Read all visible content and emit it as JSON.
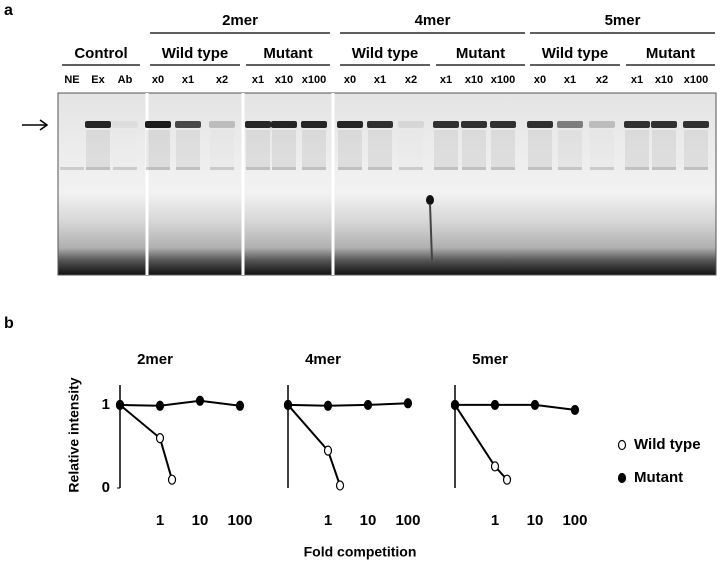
{
  "gel": {
    "panel_label": "a",
    "constructs": [
      "2mer",
      "4mer",
      "5mer"
    ],
    "groups": [
      "Control",
      "Wild type",
      "Mutant",
      "Wild type",
      "Mutant",
      "Wild type",
      "Mutant"
    ],
    "lanes": [
      "NE",
      "Ex",
      "Ab",
      "x0",
      "x1",
      "x2",
      "x1",
      "x10",
      "x100",
      "x0",
      "x1",
      "x2",
      "x1",
      "x10",
      "x100",
      "x0",
      "x1",
      "x2",
      "x1",
      "x10",
      "x100"
    ]
  },
  "plot": {
    "panel_label": "b",
    "ylabel": "Relative intensity",
    "xlabel": "Fold competition",
    "legend": "right"
  },
  "chart_data": [
    {
      "type": "line",
      "title": "2mer",
      "xscale": "log",
      "xlim": [
        0.1,
        200
      ],
      "xticks": [
        1,
        10,
        100
      ],
      "ylim": [
        0,
        1.24
      ],
      "yticks": [
        0,
        1
      ],
      "series": [
        {
          "name": "Wild type",
          "color": "#ffffff",
          "x": [
            0,
            1,
            2
          ],
          "values": [
            1,
            0.6,
            0.1
          ]
        },
        {
          "name": "Mutant",
          "color": "#000000",
          "x": [
            0,
            1,
            10,
            100
          ],
          "values": [
            1,
            0.99,
            1.05,
            0.99
          ]
        }
      ]
    },
    {
      "type": "line",
      "title": "4mer",
      "xscale": "log",
      "xlim": [
        0.1,
        200
      ],
      "xticks": [
        1,
        10,
        100
      ],
      "ylim": [
        0,
        1.24
      ],
      "series": [
        {
          "name": "Wild type",
          "color": "#ffffff",
          "x": [
            0,
            1,
            2
          ],
          "values": [
            1,
            0.45,
            0.03
          ]
        },
        {
          "name": "Mutant",
          "color": "#000000",
          "x": [
            0,
            1,
            10,
            100
          ],
          "values": [
            1,
            0.99,
            1,
            1.02
          ]
        }
      ]
    },
    {
      "type": "line",
      "title": "5mer",
      "xscale": "log",
      "xlim": [
        0.1,
        200
      ],
      "xticks": [
        1,
        10,
        100
      ],
      "ylim": [
        0,
        1.24
      ],
      "series": [
        {
          "name": "Wild type",
          "color": "#ffffff",
          "x": [
            0,
            1,
            2
          ],
          "values": [
            1,
            0.26,
            0.1
          ]
        },
        {
          "name": "Mutant",
          "color": "#000000",
          "x": [
            0,
            1,
            10,
            100
          ],
          "values": [
            1,
            1,
            1,
            0.94
          ]
        }
      ]
    }
  ]
}
